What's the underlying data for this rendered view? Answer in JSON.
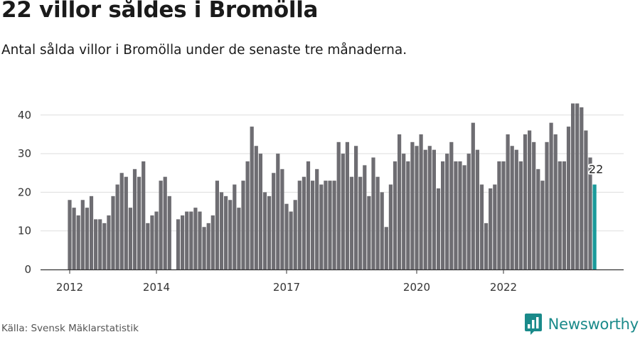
{
  "header": {
    "title": "22 villor såldes i Bromölla",
    "subtitle": "Antal sålda villor i Bromölla under de senaste tre månaderna."
  },
  "footer": {
    "source": "Källa: Svensk Mäklarstatistik",
    "brand": "Newsworthy"
  },
  "colors": {
    "bar": "#6e6d72",
    "highlight": "#1a9a9a",
    "grid": "#dddddd",
    "axis": "#333333",
    "brand": "#1a8a8a"
  },
  "icons": {
    "brand": "newsworthy-logo-icon"
  },
  "chart_data": {
    "type": "bar",
    "title": "22 villor såldes i Bromölla",
    "subtitle": "Antal sålda villor i Bromölla under de senaste tre månaderna.",
    "xlabel": "",
    "ylabel": "",
    "ylim": [
      0,
      45
    ],
    "yticks": [
      0,
      10,
      20,
      30,
      40
    ],
    "grid": true,
    "legend": "none",
    "x_ticks": [
      {
        "label": "2012",
        "index": 0
      },
      {
        "label": "2014",
        "index": 20
      },
      {
        "label": "2017",
        "index": 50
      },
      {
        "label": "2020",
        "index": 80
      },
      {
        "label": "2022",
        "index": 100
      }
    ],
    "highlight_label": "22",
    "values": [
      18,
      16,
      14,
      18,
      16,
      19,
      13,
      13,
      12,
      14,
      19,
      22,
      25,
      24,
      16,
      26,
      24,
      28,
      12,
      14,
      15,
      23,
      24,
      19,
      0,
      13,
      14,
      15,
      15,
      16,
      15,
      11,
      12,
      14,
      23,
      20,
      19,
      18,
      22,
      16,
      23,
      28,
      37,
      32,
      30,
      20,
      19,
      25,
      30,
      26,
      17,
      15,
      18,
      23,
      24,
      28,
      23,
      26,
      22,
      23,
      23,
      23,
      33,
      30,
      33,
      24,
      32,
      24,
      27,
      19,
      29,
      24,
      20,
      11,
      22,
      28,
      35,
      30,
      28,
      33,
      32,
      35,
      31,
      32,
      31,
      21,
      28,
      30,
      33,
      28,
      28,
      27,
      30,
      38,
      31,
      22,
      12,
      21,
      22,
      28,
      28,
      35,
      32,
      31,
      28,
      35,
      36,
      33,
      26,
      23,
      33,
      38,
      35,
      28,
      28,
      37,
      43,
      43,
      42,
      36,
      29,
      22
    ],
    "highlight_index": 121
  }
}
